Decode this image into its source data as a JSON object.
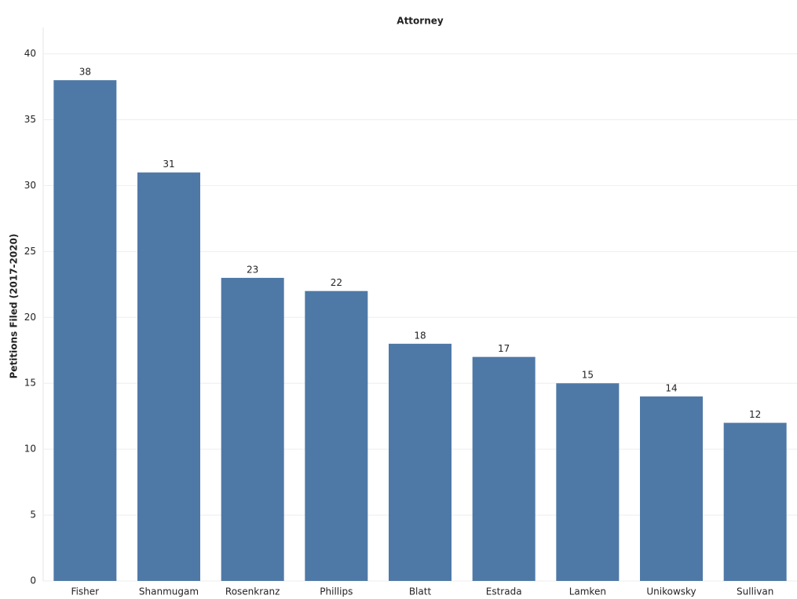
{
  "chart_data": {
    "type": "bar",
    "title": "Attorney",
    "y_label": "Petitions Filed (2017-2020)",
    "categories": [
      "Fisher",
      "Shanmugam",
      "Rosenkranz",
      "Phillips",
      "Blatt",
      "Estrada",
      "Lamken",
      "Unikowsky",
      "Sullivan"
    ],
    "values": [
      38,
      31,
      23,
      22,
      18,
      17,
      15,
      14,
      12
    ],
    "color": "#4e79a7",
    "ylim": [
      0,
      42
    ],
    "yticks": [
      0,
      5,
      10,
      15,
      20,
      25,
      30,
      35,
      40
    ],
    "grid": true
  }
}
